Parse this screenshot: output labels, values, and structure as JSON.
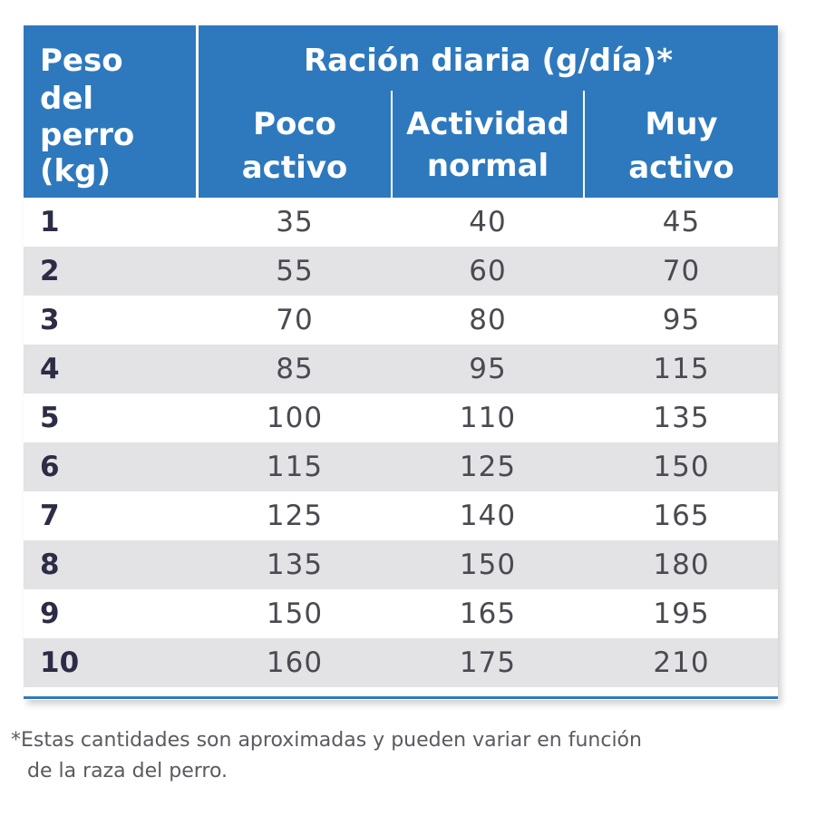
{
  "table": {
    "header": {
      "weight_lines": [
        "Peso",
        "del",
        "perro",
        "(kg)"
      ],
      "group_title": "Ración diaria (g/día)*",
      "columns": [
        {
          "line1": "Poco",
          "line2": "activo"
        },
        {
          "line1": "Actividad",
          "line2": "normal"
        },
        {
          "line1": "Muy",
          "line2": "activo"
        }
      ]
    },
    "rows": [
      {
        "weight": "1",
        "values": [
          "35",
          "40",
          "45"
        ]
      },
      {
        "weight": "2",
        "values": [
          "55",
          "60",
          "70"
        ]
      },
      {
        "weight": "3",
        "values": [
          "70",
          "80",
          "95"
        ]
      },
      {
        "weight": "4",
        "values": [
          "85",
          "95",
          "115"
        ]
      },
      {
        "weight": "5",
        "values": [
          "100",
          "110",
          "135"
        ]
      },
      {
        "weight": "6",
        "values": [
          "115",
          "125",
          "150"
        ]
      },
      {
        "weight": "7",
        "values": [
          "125",
          "140",
          "165"
        ]
      },
      {
        "weight": "8",
        "values": [
          "135",
          "150",
          "180"
        ]
      },
      {
        "weight": "9",
        "values": [
          "150",
          "165",
          "195"
        ]
      },
      {
        "weight": "10",
        "values": [
          "160",
          "175",
          "210"
        ]
      }
    ]
  },
  "footnote": {
    "line1": "*Estas cantidades son aproximadas y pueden variar en función",
    "line2": "de la raza del perro."
  },
  "colors": {
    "header_blue": "#2e79bd",
    "row_shade": "#e3e3e6",
    "text_dark": "#2c2c46",
    "text_value": "#4a4a52"
  }
}
